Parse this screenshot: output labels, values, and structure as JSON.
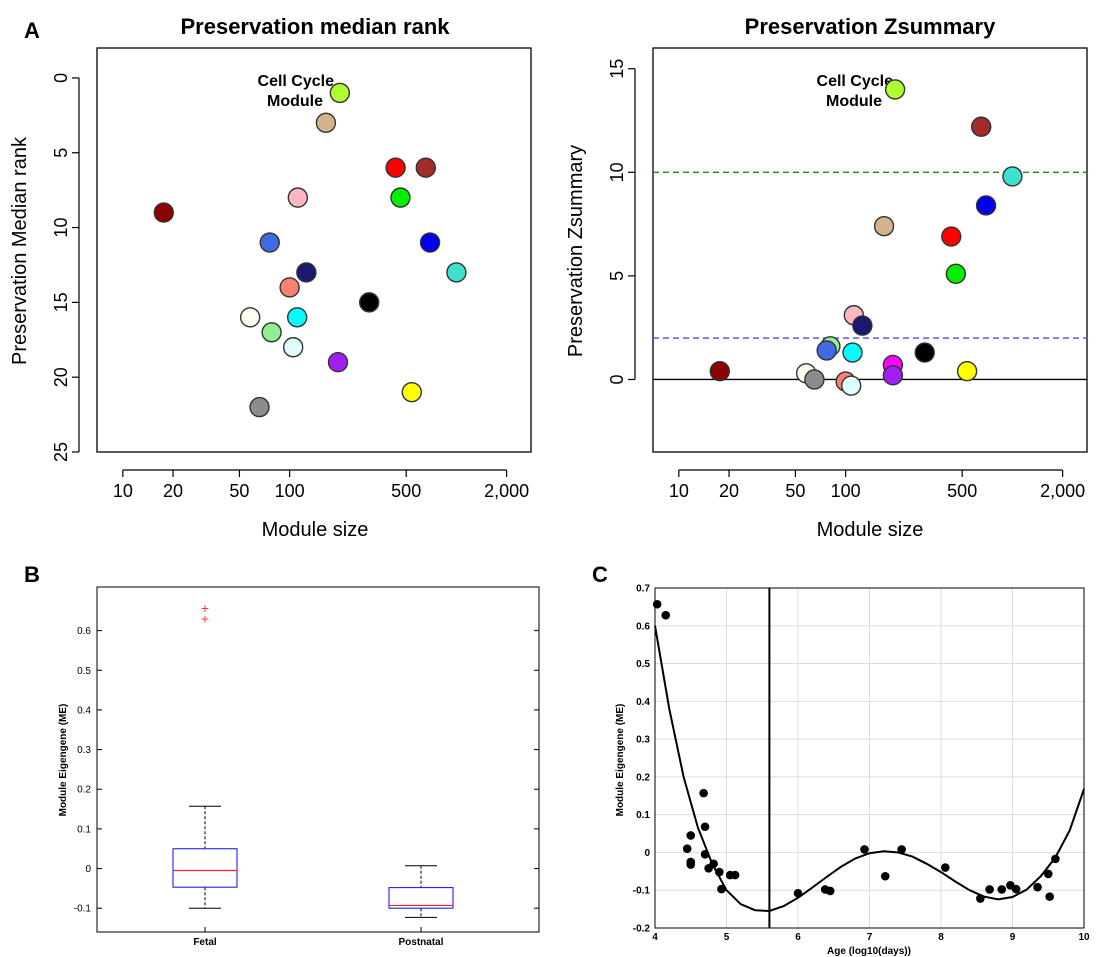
{
  "panel_letters": {
    "a": "A",
    "b": "B",
    "c": "C"
  },
  "chart_data": [
    {
      "type": "scatter",
      "title": "Preservation median rank",
      "xlabel": "Module size",
      "ylabel": "Preservation Median rank",
      "x_scale": "log",
      "xlim": [
        7,
        2800
      ],
      "ylim": [
        25,
        -2
      ],
      "y_inverted": true,
      "x_ticks": [
        10,
        20,
        50,
        100,
        500,
        2000
      ],
      "x_tick_labels": [
        "10",
        "20",
        "50",
        "100",
        "500",
        "2,000"
      ],
      "y_ticks": [
        0,
        5,
        10,
        15,
        20,
        25
      ],
      "y_tick_labels": [
        "0",
        "5",
        "10",
        "15",
        "20",
        "25"
      ],
      "annotation": {
        "line1": "Cell Cycle",
        "line2": "Module"
      },
      "points": [
        {
          "x": 200,
          "y": 1,
          "color": "#adff2f"
        },
        {
          "x": 165,
          "y": 3,
          "color": "#d2b48c"
        },
        {
          "x": 17.6,
          "y": 9,
          "color": "#8b0000"
        },
        {
          "x": 112,
          "y": 8,
          "color": "#ffb6c1"
        },
        {
          "x": 76,
          "y": 11,
          "color": "#4169e1"
        },
        {
          "x": 432,
          "y": 6,
          "color": "#ff0000"
        },
        {
          "x": 655,
          "y": 6,
          "color": "#a52a2a"
        },
        {
          "x": 462,
          "y": 8,
          "color": "#00ee00"
        },
        {
          "x": 695,
          "y": 11,
          "color": "#0000ee"
        },
        {
          "x": 1000,
          "y": 13,
          "color": "#40e0d0"
        },
        {
          "x": 126,
          "y": 13,
          "color": "#191970"
        },
        {
          "x": 100,
          "y": 14,
          "color": "#fa8072"
        },
        {
          "x": 300,
          "y": 15,
          "color": "#000000"
        },
        {
          "x": 58,
          "y": 16,
          "color": "#fffff0"
        },
        {
          "x": 111,
          "y": 16,
          "color": "#00ffff"
        },
        {
          "x": 78,
          "y": 17,
          "color": "#90ee90"
        },
        {
          "x": 105,
          "y": 18,
          "color": "#e0ffff"
        },
        {
          "x": 195,
          "y": 19,
          "color": "#a020f0"
        },
        {
          "x": 540,
          "y": 21,
          "color": "#ffff00"
        },
        {
          "x": 66,
          "y": 22,
          "color": "#8c8c8c"
        }
      ]
    },
    {
      "type": "scatter",
      "title": "Preservation Zsummary",
      "xlabel": "Module size",
      "ylabel": "Preservation Zsummary",
      "x_scale": "log",
      "xlim": [
        7,
        2800
      ],
      "ylim": [
        -3.5,
        16
      ],
      "x_ticks": [
        10,
        20,
        50,
        100,
        500,
        2000
      ],
      "x_tick_labels": [
        "10",
        "20",
        "50",
        "100",
        "500",
        "2,000"
      ],
      "y_ticks": [
        0,
        5,
        10,
        15
      ],
      "y_tick_labels": [
        "0",
        "5",
        "10",
        "15"
      ],
      "reference_lines": [
        {
          "y": 10,
          "color": "#228b22",
          "dashed": true
        },
        {
          "y": 2,
          "color": "#4a4aff",
          "dashed": true
        },
        {
          "y": 0,
          "color": "#000000",
          "dashed": false
        }
      ],
      "annotation": {
        "line1": "Cell Cycle",
        "line2": "Module"
      },
      "points": [
        {
          "x": 198,
          "y": 14.0,
          "color": "#adff2f"
        },
        {
          "x": 650,
          "y": 12.2,
          "color": "#a52a2a"
        },
        {
          "x": 1000,
          "y": 9.8,
          "color": "#40e0d0"
        },
        {
          "x": 695,
          "y": 8.4,
          "color": "#0000ee"
        },
        {
          "x": 170,
          "y": 7.4,
          "color": "#d2b48c"
        },
        {
          "x": 430,
          "y": 6.9,
          "color": "#ff0000"
        },
        {
          "x": 458,
          "y": 5.1,
          "color": "#00ee00"
        },
        {
          "x": 112,
          "y": 3.1,
          "color": "#ffb6c1"
        },
        {
          "x": 126,
          "y": 2.6,
          "color": "#191970"
        },
        {
          "x": 81,
          "y": 1.6,
          "color": "#90ee90"
        },
        {
          "x": 77,
          "y": 1.4,
          "color": "#4169e1"
        },
        {
          "x": 110,
          "y": 1.3,
          "color": "#00ffff"
        },
        {
          "x": 298,
          "y": 1.3,
          "color": "#000000"
        },
        {
          "x": 192,
          "y": 0.7,
          "color": "#ff00ff"
        },
        {
          "x": 17.6,
          "y": 0.4,
          "color": "#8b0000"
        },
        {
          "x": 58,
          "y": 0.3,
          "color": "#fffff0"
        },
        {
          "x": 535,
          "y": 0.4,
          "color": "#ffff00"
        },
        {
          "x": 192,
          "y": 0.2,
          "color": "#a020f0"
        },
        {
          "x": 65,
          "y": 0.0,
          "color": "#8c8c8c"
        },
        {
          "x": 100,
          "y": -0.1,
          "color": "#fa8072"
        },
        {
          "x": 108,
          "y": -0.3,
          "color": "#e0ffff"
        }
      ]
    },
    {
      "type": "box",
      "xlabel": "",
      "ylabel": "Module Eigengene (ME)",
      "ylim": [
        -0.16,
        0.71
      ],
      "y_ticks": [
        -0.1,
        0,
        0.1,
        0.2,
        0.3,
        0.4,
        0.5,
        0.6
      ],
      "y_tick_labels": [
        "-0.1",
        "0",
        "0.1",
        "0.2",
        "0.3",
        "0.4",
        "0.5",
        "0.6"
      ],
      "categories": [
        "Fetal",
        "Postnatal"
      ],
      "boxes": [
        {
          "q1": -0.047,
          "median": -0.005,
          "q3": 0.05,
          "whisker_low": -0.1,
          "whisker_high": 0.157,
          "outliers": [
            0.63,
            0.657
          ]
        },
        {
          "q1": -0.1,
          "median": -0.093,
          "q3": -0.048,
          "whisker_low": -0.123,
          "whisker_high": 0.007,
          "outliers": []
        }
      ]
    },
    {
      "type": "scatter",
      "xlabel": "Age (log10(days))",
      "ylabel": "Module Eigengene (ME)",
      "xlim": [
        4,
        10
      ],
      "ylim": [
        -0.2,
        0.7
      ],
      "x_ticks": [
        4,
        5,
        6,
        7,
        8,
        9,
        10
      ],
      "x_tick_labels": [
        "4",
        "5",
        "6",
        "7",
        "8",
        "9",
        "10"
      ],
      "y_ticks": [
        -0.2,
        -0.1,
        0,
        0.1,
        0.2,
        0.3,
        0.4,
        0.5,
        0.6,
        0.7
      ],
      "y_tick_labels": [
        "-0.2",
        "-0.1",
        "0",
        "0.1",
        "0.2",
        "0.3",
        "0.4",
        "0.5",
        "0.6",
        "0.7"
      ],
      "grid": true,
      "vertical_line_x": 5.6,
      "points": [
        [
          4.03,
          0.657
        ],
        [
          4.15,
          0.628
        ],
        [
          4.45,
          0.01
        ],
        [
          4.5,
          0.045
        ],
        [
          4.5,
          -0.025
        ],
        [
          4.5,
          -0.032
        ],
        [
          4.68,
          0.157
        ],
        [
          4.7,
          0.068
        ],
        [
          4.7,
          -0.005
        ],
        [
          4.75,
          -0.042
        ],
        [
          4.82,
          -0.03
        ],
        [
          4.9,
          -0.052
        ],
        [
          4.93,
          -0.097
        ],
        [
          5.05,
          -0.06
        ],
        [
          5.12,
          -0.06
        ],
        [
          6.0,
          -0.108
        ],
        [
          6.38,
          -0.098
        ],
        [
          6.45,
          -0.102
        ],
        [
          6.93,
          0.008
        ],
        [
          7.22,
          -0.063
        ],
        [
          7.45,
          0.008
        ],
        [
          8.06,
          -0.04
        ],
        [
          8.55,
          -0.122
        ],
        [
          8.68,
          -0.098
        ],
        [
          8.85,
          -0.098
        ],
        [
          8.97,
          -0.087
        ],
        [
          9.05,
          -0.097
        ],
        [
          9.35,
          -0.092
        ],
        [
          9.5,
          -0.057
        ],
        [
          9.52,
          -0.117
        ],
        [
          9.6,
          -0.017
        ]
      ],
      "fit_curve": [
        [
          4.0,
          0.6
        ],
        [
          4.2,
          0.38
        ],
        [
          4.4,
          0.2
        ],
        [
          4.6,
          0.066
        ],
        [
          4.8,
          -0.03
        ],
        [
          5.0,
          -0.1
        ],
        [
          5.2,
          -0.137
        ],
        [
          5.4,
          -0.153
        ],
        [
          5.6,
          -0.155
        ],
        [
          5.8,
          -0.142
        ],
        [
          6.0,
          -0.12
        ],
        [
          6.2,
          -0.093
        ],
        [
          6.4,
          -0.065
        ],
        [
          6.6,
          -0.038
        ],
        [
          6.8,
          -0.016
        ],
        [
          7.0,
          -0.002
        ],
        [
          7.2,
          0.003
        ],
        [
          7.4,
          0.0
        ],
        [
          7.6,
          -0.011
        ],
        [
          7.8,
          -0.03
        ],
        [
          8.0,
          -0.052
        ],
        [
          8.2,
          -0.077
        ],
        [
          8.4,
          -0.1
        ],
        [
          8.6,
          -0.117
        ],
        [
          8.8,
          -0.124
        ],
        [
          9.0,
          -0.118
        ],
        [
          9.2,
          -0.098
        ],
        [
          9.4,
          -0.062
        ],
        [
          9.6,
          -0.013
        ],
        [
          9.8,
          0.058
        ],
        [
          10.0,
          0.168
        ]
      ]
    }
  ]
}
